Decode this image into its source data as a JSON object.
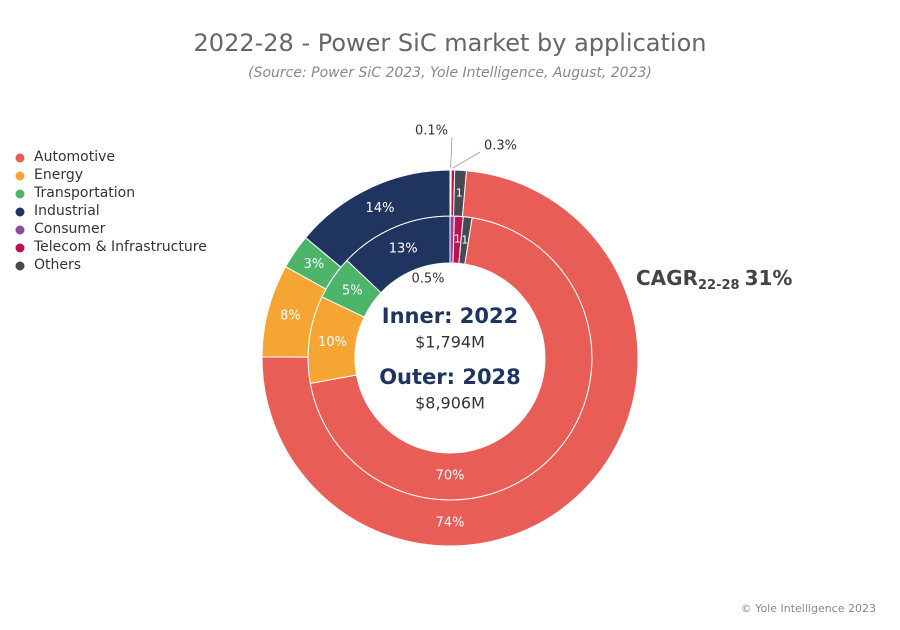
{
  "chart_data": {
    "type": "nested-donut",
    "title": "2022-28 - Power SiC market by application",
    "subtitle": "(Source: Power SiC 2023, Yole Intelligence, August, 2023)",
    "categories": [
      "Automotive",
      "Energy",
      "Transportation",
      "Industrial",
      "Consumer",
      "Telecom & Infrastructure",
      "Others"
    ],
    "colors": [
      "#e95d57",
      "#f5a534",
      "#4db56a",
      "#1f3560",
      "#8e4a9e",
      "#c0124e",
      "#444a4f"
    ],
    "series": [
      {
        "name": "Inner: 2022",
        "total_label": "$1,794M",
        "values": [
          70,
          10,
          5,
          13,
          0.5,
          1,
          1
        ],
        "value_labels": [
          "70%",
          "10%",
          "5%",
          "13%",
          "0.5%",
          "1",
          "1"
        ]
      },
      {
        "name": "Outer: 2028",
        "total_label": "$8,906M",
        "values": [
          74,
          8,
          3,
          14,
          0.1,
          0.3,
          1
        ],
        "value_labels": [
          "74%",
          "8%",
          "3%",
          "14%",
          "0.1%",
          "0.3%",
          "1"
        ]
      }
    ],
    "annotation": {
      "text": "CAGR",
      "subscript": "22-28",
      "value_label": "31%"
    },
    "footer": "© Yole Intelligence 2023"
  }
}
